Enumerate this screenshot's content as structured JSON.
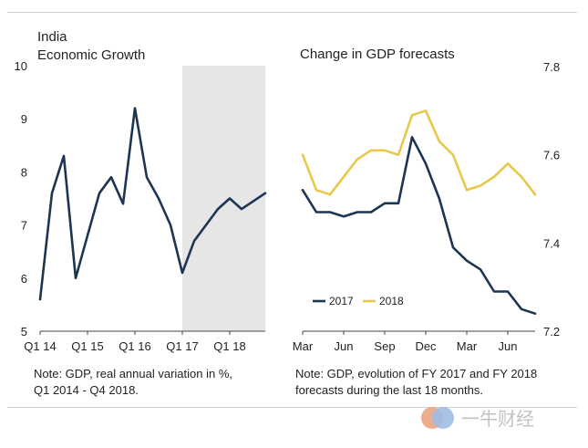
{
  "chart_data": [
    {
      "type": "line",
      "title": "India",
      "subtitle": "Economic Growth",
      "xlabel": "",
      "ylabel": "",
      "ylim": [
        5,
        10
      ],
      "yticks": [
        5,
        6,
        7,
        8,
        9,
        10
      ],
      "x_tick_labels": [
        {
          "label": "Q1 14",
          "x": 0
        },
        {
          "label": "Q1 15",
          "x": 4
        },
        {
          "label": "Q1 16",
          "x": 8
        },
        {
          "label": "Q1 17",
          "x": 12
        },
        {
          "label": "Q1 18",
          "x": 16
        }
      ],
      "shaded_region": {
        "x_start": 12,
        "x_end": 19
      },
      "series": [
        {
          "name": "GDP",
          "color": "#1c3553",
          "x": [
            0,
            1,
            2,
            3,
            4,
            5,
            6,
            7,
            8,
            9,
            10,
            11,
            12,
            13,
            14,
            15,
            16,
            17,
            18,
            19
          ],
          "values": [
            5.6,
            7.6,
            8.3,
            6.0,
            6.8,
            7.6,
            7.9,
            7.4,
            9.2,
            7.9,
            7.5,
            7.0,
            6.1,
            6.7,
            7.0,
            7.3,
            7.5,
            7.3,
            7.45,
            7.6
          ]
        }
      ],
      "note": "Note: GDP, real annual variation in %,",
      "note_line2": "Q1 2014 - Q4 2018."
    },
    {
      "type": "line",
      "title": "Change in GDP forecasts",
      "xlabel": "",
      "ylabel": "",
      "ylim": [
        7.2,
        7.8
      ],
      "yticks": [
        7.2,
        7.4,
        7.6,
        7.8
      ],
      "y_axis_side": "right",
      "x_tick_labels": [
        {
          "label": "Mar",
          "x": 0
        },
        {
          "label": "Jun",
          "x": 3
        },
        {
          "label": "Sep",
          "x": 6
        },
        {
          "label": "Dec",
          "x": 9
        },
        {
          "label": "Mar",
          "x": 12
        },
        {
          "label": "Jun",
          "x": 15
        }
      ],
      "legend_position": "bottom-left",
      "series": [
        {
          "name": "2017",
          "color": "#1c3553",
          "x": [
            0,
            1,
            2,
            3,
            4,
            5,
            6,
            7,
            8,
            9,
            10,
            11,
            12,
            13,
            14,
            15,
            16,
            17
          ],
          "values": [
            7.52,
            7.47,
            7.47,
            7.46,
            7.47,
            7.47,
            7.49,
            7.49,
            7.64,
            7.58,
            7.5,
            7.39,
            7.36,
            7.34,
            7.29,
            7.29,
            7.25,
            7.24
          ]
        },
        {
          "name": "2018",
          "color": "#e8c84a",
          "x": [
            0,
            1,
            2,
            3,
            4,
            5,
            6,
            7,
            8,
            9,
            10,
            11,
            12,
            13,
            14,
            15,
            16,
            17
          ],
          "values": [
            7.6,
            7.52,
            7.51,
            7.55,
            7.59,
            7.61,
            7.61,
            7.6,
            7.69,
            7.7,
            7.63,
            7.6,
            7.52,
            7.53,
            7.55,
            7.58,
            7.55,
            7.51
          ]
        }
      ],
      "note": "Note: GDP, evolution of FY 2017 and FY 2018",
      "note_line2": "forecasts during the last 18 months."
    }
  ],
  "watermark": {
    "text": "一牛财经"
  }
}
